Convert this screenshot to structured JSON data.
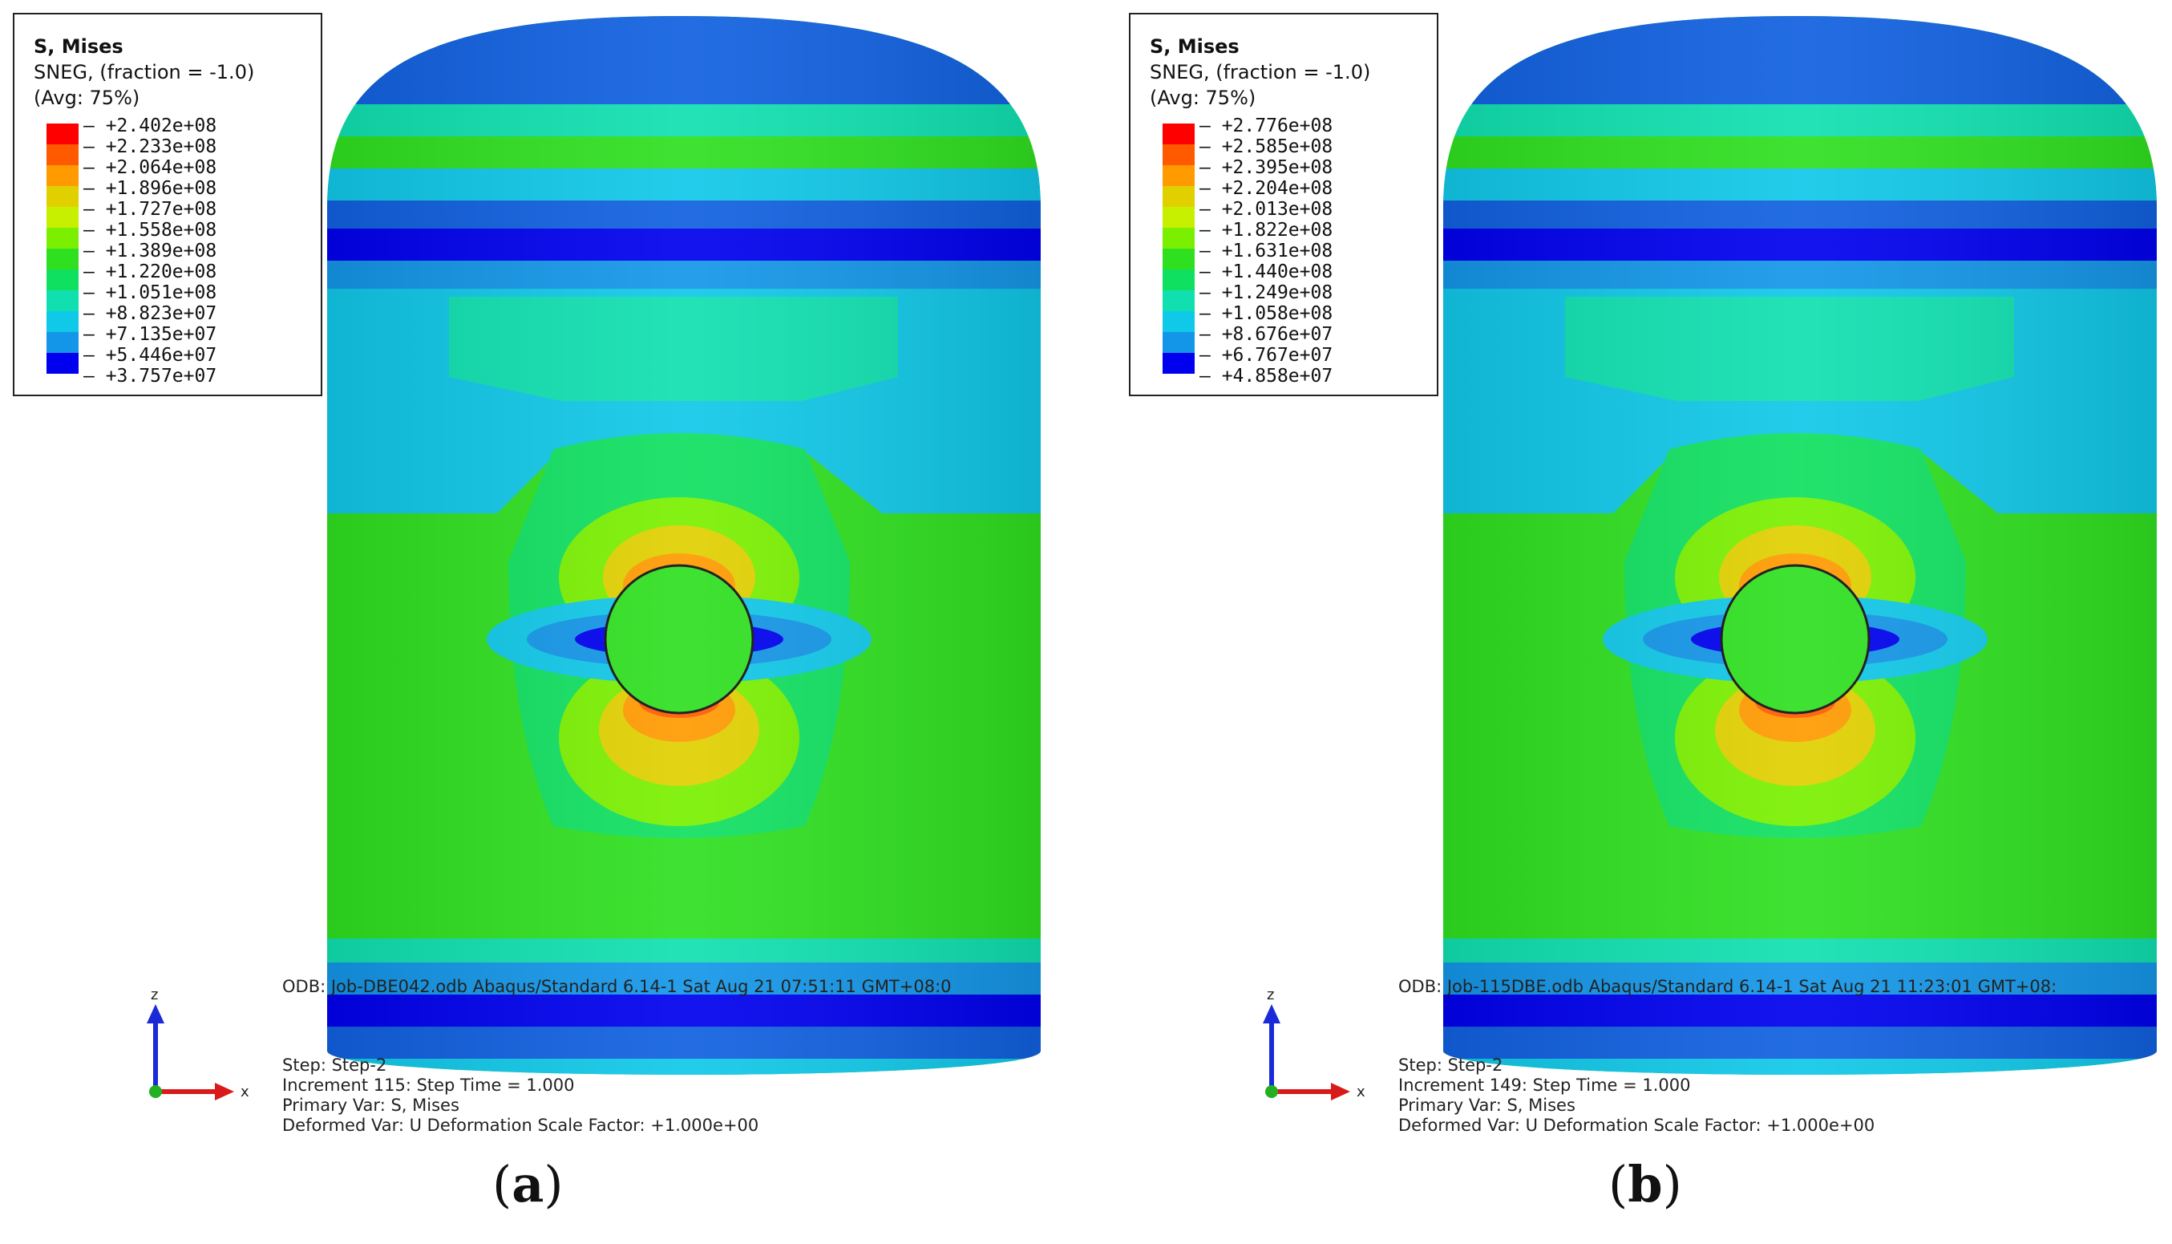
{
  "panels": [
    {
      "id": "a",
      "legend": {
        "title": "S, Mises",
        "subtitle": "SNEG, (fraction = -1.0)",
        "avg": "(Avg: 75%)",
        "values": [
          "+2.402e+08",
          "+2.233e+08",
          "+2.064e+08",
          "+1.896e+08",
          "+1.727e+08",
          "+1.558e+08",
          "+1.389e+08",
          "+1.220e+08",
          "+1.051e+08",
          "+8.823e+07",
          "+7.135e+07",
          "+5.446e+07",
          "+3.757e+07"
        ]
      },
      "info": {
        "odb": "ODB: Job-DBE042.odb    Abaqus/Standard 6.14-1    Sat Aug 21 07:51:11 GMT+08:0",
        "step": "Step: Step-2",
        "increment": "Increment    115: Step Time =    1.000",
        "primary": "Primary Var: S, Mises",
        "deformed": "Deformed Var: U   Deformation Scale Factor: +1.000e+00"
      },
      "axis": {
        "z": "z",
        "x": "x"
      },
      "caption": "a"
    },
    {
      "id": "b",
      "legend": {
        "title": "S, Mises",
        "subtitle": "SNEG, (fraction = -1.0)",
        "avg": "(Avg: 75%)",
        "values": [
          "+2.776e+08",
          "+2.585e+08",
          "+2.395e+08",
          "+2.204e+08",
          "+2.013e+08",
          "+1.822e+08",
          "+1.631e+08",
          "+1.440e+08",
          "+1.249e+08",
          "+1.058e+08",
          "+8.676e+07",
          "+6.767e+07",
          "+4.858e+07"
        ]
      },
      "info": {
        "odb": "ODB: Job-115DBE.odb    Abaqus/Standard 6.14-1    Sat Aug 21 11:23:01 GMT+08:",
        "step": "Step: Step-2",
        "increment": "Increment    149: Step Time =    1.000",
        "primary": "Primary Var: S, Mises",
        "deformed": "Deformed Var: U   Deformation Scale Factor: +1.000e+00"
      },
      "axis": {
        "z": "z",
        "x": "x"
      },
      "caption": "b"
    }
  ],
  "colors": {
    "scale": [
      "#ff0000",
      "#ff5a00",
      "#ff9a00",
      "#e0d000",
      "#c6f000",
      "#7af000",
      "#2fe020",
      "#10e060",
      "#10e0b0",
      "#10c8e8",
      "#1496e8",
      "#1060e0",
      "#0000ee"
    ]
  }
}
